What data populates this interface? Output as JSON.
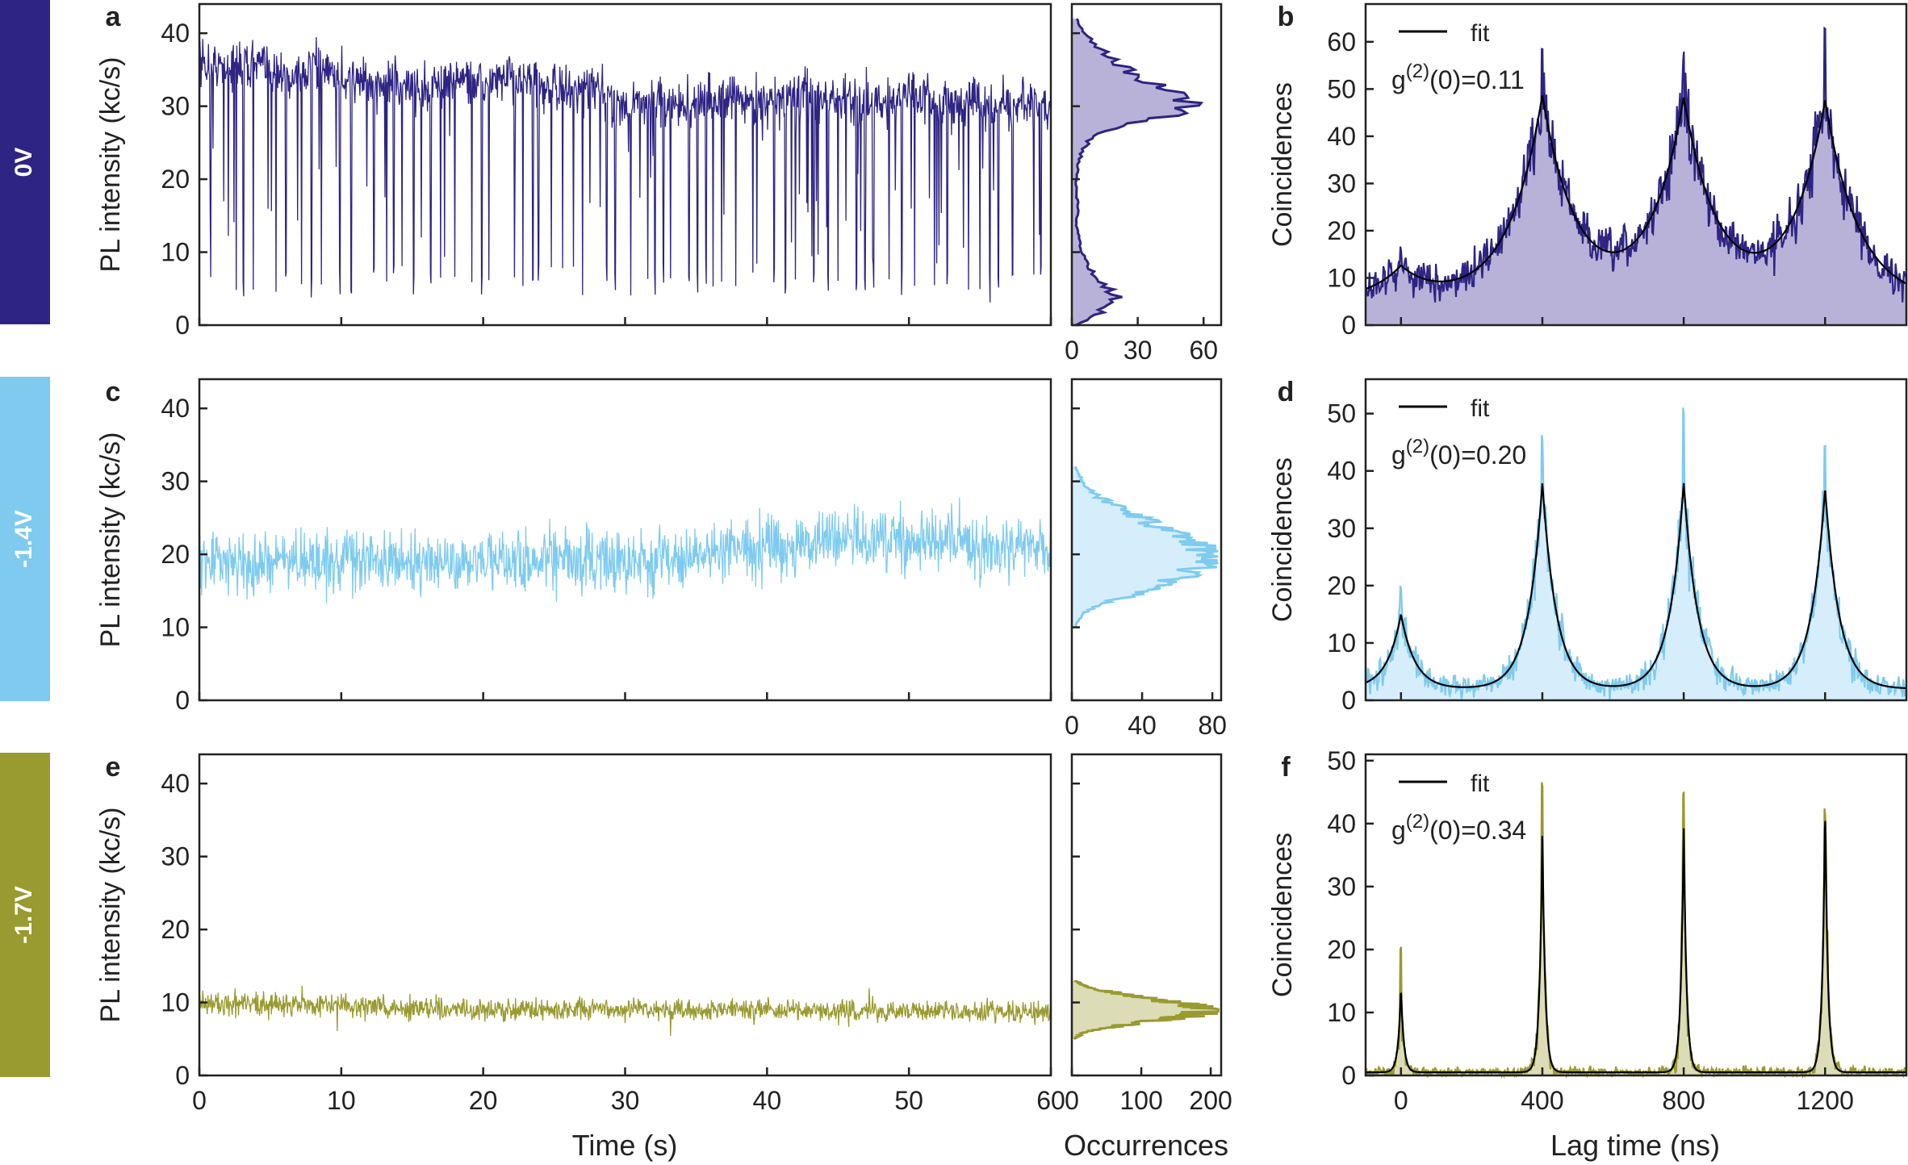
{
  "colors": {
    "row_0V": "#2e2483",
    "row_0V_fill": "#b9b2d8",
    "row_1_4V": "#7ecbef",
    "row_1_4V_fill": "#d6eefb",
    "row_1_7V": "#999a2f",
    "row_1_7V_fill": "#dcdcb6",
    "fit": "#000000"
  },
  "figure": {
    "common_xlabels": {
      "time": "Time (s)",
      "occurrences": "Occurrences",
      "lag": "Lag time (ns)"
    },
    "rows": [
      {
        "voltage_label": "0V",
        "color_key": "row_0V",
        "fill_key": "row_0V_fill",
        "trace": {
          "panel_letter": "a",
          "ylabel": "PL intensity (kc/s)"
        },
        "hist": {
          "ticks": [
            "0",
            "30",
            "60"
          ]
        },
        "g2": {
          "panel_letter": "b",
          "ylabel": "Coincidences",
          "legend_label": "fit",
          "g_prefix": "g",
          "g_sup": "(2)",
          "g_suffix": "(0)=0.11"
        }
      },
      {
        "voltage_label": "-1.4V",
        "color_key": "row_1_4V",
        "fill_key": "row_1_4V_fill",
        "trace": {
          "panel_letter": "c",
          "ylabel": "PL intensity (kc/s)"
        },
        "hist": {
          "ticks": [
            "0",
            "40",
            "80"
          ]
        },
        "g2": {
          "panel_letter": "d",
          "ylabel": "Coincidences",
          "legend_label": "fit",
          "g_prefix": "g",
          "g_sup": "(2)",
          "g_suffix": "(0)=0.20"
        }
      },
      {
        "voltage_label": "-1.7V",
        "color_key": "row_1_7V",
        "fill_key": "row_1_7V_fill",
        "trace": {
          "panel_letter": "e",
          "ylabel": "PL intensity (kc/s)"
        },
        "hist": {
          "ticks": [
            "0",
            "100",
            "200"
          ]
        },
        "g2": {
          "panel_letter": "f",
          "ylabel": "Coincidences",
          "legend_label": "fit",
          "g_prefix": "g",
          "g_sup": "(2)",
          "g_suffix": "(0)=0.34"
        }
      }
    ]
  },
  "chart_data": [
    {
      "type": "line",
      "panel": "a",
      "voltage": "0V",
      "xlabel": "Time (s)",
      "ylabel": "PL intensity (kc/s)",
      "xlim": [
        0,
        60
      ],
      "ylim": [
        0,
        44
      ],
      "xticks": [
        0,
        10,
        20,
        30,
        40,
        50,
        60
      ],
      "yticks": [
        0,
        10,
        20,
        30,
        40
      ],
      "x": [
        0,
        2,
        4,
        6,
        8,
        10,
        12,
        14,
        16,
        18,
        20,
        22,
        24,
        26,
        28,
        30,
        32,
        34,
        36,
        38,
        40,
        42,
        44,
        46,
        48,
        50,
        52,
        54,
        56,
        58,
        60
      ],
      "y": [
        36,
        35,
        36,
        34,
        35,
        34,
        33,
        33,
        32,
        34,
        33,
        34,
        33,
        32,
        32,
        30,
        31,
        30,
        31,
        31,
        30,
        32,
        31,
        31,
        30,
        32,
        30,
        31,
        30,
        30,
        30
      ],
      "blink_times": [
        0.8,
        2.6,
        3.1,
        3.8,
        5.4,
        6.1,
        7.2,
        7.9,
        8.6,
        9.9,
        10.7,
        12.3,
        13.2,
        13.7,
        15.1,
        16.3,
        17.0,
        18.0,
        19.2,
        19.9,
        20.4,
        22.2,
        22.8,
        23.5,
        23.9,
        24.8,
        25.6,
        27.0,
        28.7,
        29.3,
        30.4,
        31.6,
        32.1,
        32.7,
        33.2,
        34.5,
        35.1,
        35.7,
        36.2,
        36.8,
        37.8,
        39.0,
        40.5,
        41.3,
        42.0,
        43.3,
        44.3,
        45.0,
        46.3,
        46.9,
        47.5,
        48.6,
        49.5,
        50.4,
        51.8,
        52.7,
        54.2,
        55.0,
        55.7,
        56.3,
        57.3,
        58.8,
        59.3
      ],
      "off_level": 6
    },
    {
      "type": "bar",
      "panel": "a-histogram",
      "orientation": "horizontal",
      "xlabel": "Occurrences",
      "xlim": [
        0,
        68
      ],
      "xticks": [
        0,
        30,
        60
      ],
      "ylim": [
        0,
        44
      ],
      "y": [
        0,
        2,
        4,
        6,
        8,
        10,
        12,
        14,
        16,
        18,
        20,
        22,
        24,
        26,
        28,
        30,
        32,
        34,
        36,
        38,
        40,
        42
      ],
      "values": [
        2,
        14,
        20,
        12,
        8,
        4,
        3,
        2,
        3,
        2,
        2,
        3,
        5,
        9,
        32,
        60,
        48,
        30,
        20,
        12,
        6,
        2
      ]
    },
    {
      "type": "line",
      "panel": "b",
      "voltage": "0V",
      "xlabel": "Lag time (ns)",
      "ylabel": "Coincidences",
      "xlim": [
        -100,
        1430
      ],
      "ylim": [
        0,
        68
      ],
      "xticks": [],
      "yticks": [
        0,
        10,
        20,
        30,
        40,
        50,
        60
      ],
      "legend": "fit",
      "annotation": "g(2)(0)=0.11",
      "peak_centers": [
        0,
        400,
        800,
        1200
      ],
      "fit_peak_heights": [
        12,
        48,
        47,
        47
      ],
      "peak_width_ns": 95,
      "fit_background": 5,
      "data_peak_max": [
        17,
        59,
        58,
        63
      ]
    },
    {
      "type": "line",
      "panel": "c",
      "voltage": "-1.4V",
      "xlabel": "Time (s)",
      "ylabel": "PL intensity (kc/s)",
      "xlim": [
        0,
        60
      ],
      "ylim": [
        0,
        44
      ],
      "xticks": [
        0,
        10,
        20,
        30,
        40,
        50,
        60
      ],
      "yticks": [
        0,
        10,
        20,
        30,
        40
      ],
      "x": [
        0,
        5,
        10,
        15,
        20,
        25,
        30,
        35,
        40,
        45,
        50,
        55,
        60
      ],
      "y": [
        19,
        19,
        19,
        19,
        19,
        19,
        19,
        20,
        21,
        22,
        22,
        21,
        21
      ],
      "noise_amplitude": 4
    },
    {
      "type": "bar",
      "panel": "c-histogram",
      "orientation": "horizontal",
      "xlabel": "Occurrences",
      "xlim": [
        0,
        85
      ],
      "xticks": [
        0,
        40,
        80
      ],
      "ylim": [
        0,
        44
      ],
      "y": [
        10,
        12,
        14,
        16,
        18,
        20,
        22,
        24,
        26,
        28,
        30,
        32
      ],
      "values": [
        2,
        6,
        28,
        55,
        72,
        82,
        68,
        48,
        30,
        14,
        6,
        2
      ]
    },
    {
      "type": "line",
      "panel": "d",
      "voltage": "-1.4V",
      "xlabel": "Lag time (ns)",
      "ylabel": "Coincidences",
      "xlim": [
        -100,
        1430
      ],
      "ylim": [
        0,
        56
      ],
      "xticks": [],
      "yticks": [
        0,
        10,
        20,
        30,
        40,
        50
      ],
      "legend": "fit",
      "annotation": "g(2)(0)=0.20",
      "peak_centers": [
        0,
        400,
        800,
        1200
      ],
      "fit_peak_heights": [
        15,
        38,
        38,
        37
      ],
      "peak_width_ns": 40,
      "fit_background": 2,
      "data_peak_max": [
        21,
        47,
        52,
        45
      ]
    },
    {
      "type": "line",
      "panel": "e",
      "voltage": "-1.7V",
      "xlabel": "Time (s)",
      "ylabel": "PL intensity (kc/s)",
      "xlim": [
        0,
        60
      ],
      "ylim": [
        0,
        44
      ],
      "xticks": [
        0,
        10,
        20,
        30,
        40,
        50,
        60
      ],
      "yticks": [
        0,
        10,
        20,
        30,
        40
      ],
      "x": [
        0,
        10,
        20,
        30,
        40,
        50,
        60
      ],
      "y": [
        10,
        9.5,
        9,
        9,
        9,
        8.8,
        8.8
      ],
      "noise_amplitude": 1.5
    },
    {
      "type": "bar",
      "panel": "e-histogram",
      "orientation": "horizontal",
      "xlabel": "Occurrences",
      "xlim": [
        0,
        215
      ],
      "xticks": [
        0,
        100,
        200
      ],
      "ylim": [
        0,
        44
      ],
      "y": [
        5,
        6,
        7,
        8,
        9,
        10,
        11,
        12,
        13
      ],
      "values": [
        3,
        20,
        80,
        160,
        205,
        150,
        80,
        25,
        5
      ]
    },
    {
      "type": "line",
      "panel": "f",
      "voltage": "-1.7V",
      "xlabel": "Lag time (ns)",
      "ylabel": "Coincidences",
      "xlim": [
        -100,
        1430
      ],
      "ylim": [
        0,
        51
      ],
      "xticks": [
        0,
        400,
        800,
        1200
      ],
      "yticks": [
        0,
        10,
        20,
        30,
        40,
        50
      ],
      "legend": "fit",
      "annotation": "g(2)(0)=0.34",
      "peak_centers": [
        0,
        400,
        800,
        1200
      ],
      "fit_peak_heights": [
        14,
        39,
        40,
        43
      ],
      "peak_width_ns": 8,
      "fit_background": 0.5,
      "data_peak_max": [
        21,
        47,
        46,
        43
      ]
    }
  ]
}
